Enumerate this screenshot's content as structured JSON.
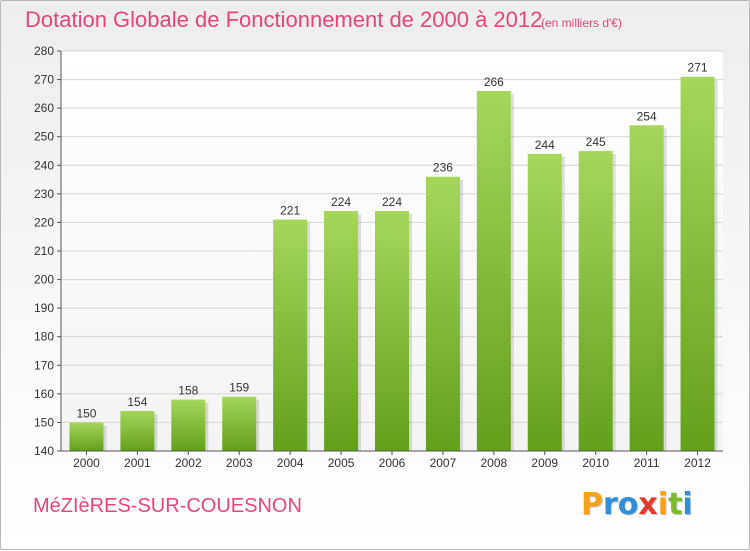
{
  "title": "Dotation Globale de Fonctionnement de 2000 à 2012",
  "unit_note": "(en milliers d'€)",
  "town": "MéZIèRES-SUR-COUESNON",
  "logo": {
    "letters": [
      "P",
      "r",
      "o",
      "x",
      "i",
      "t",
      "i"
    ],
    "colors": [
      "#f4a21b",
      "#2f8fd8",
      "#2f8fd8",
      "#e23b2e",
      "#f4a21b",
      "#7dbb2b",
      "#2f8fd8"
    ]
  },
  "colors": {
    "bar_light": "#a6d65a",
    "bar_dark": "#62a01a",
    "grid": "#d6d6d6",
    "axis": "#555555"
  },
  "chart_data": {
    "type": "bar",
    "categories": [
      "2000",
      "2001",
      "2002",
      "2003",
      "2004",
      "2005",
      "2006",
      "2007",
      "2008",
      "2009",
      "2010",
      "2011",
      "2012"
    ],
    "values": [
      150,
      154,
      158,
      159,
      221,
      224,
      224,
      236,
      266,
      244,
      245,
      254,
      271
    ],
    "data_labels": [
      "150",
      "154",
      "158",
      "159",
      "221",
      "224",
      "224",
      "236",
      "266",
      "244",
      "245",
      "254",
      "271"
    ],
    "ylim": [
      140,
      280
    ],
    "yticks": [
      140,
      150,
      160,
      170,
      180,
      190,
      200,
      210,
      220,
      230,
      240,
      250,
      260,
      270,
      280
    ],
    "grid": true,
    "legend": "none"
  }
}
